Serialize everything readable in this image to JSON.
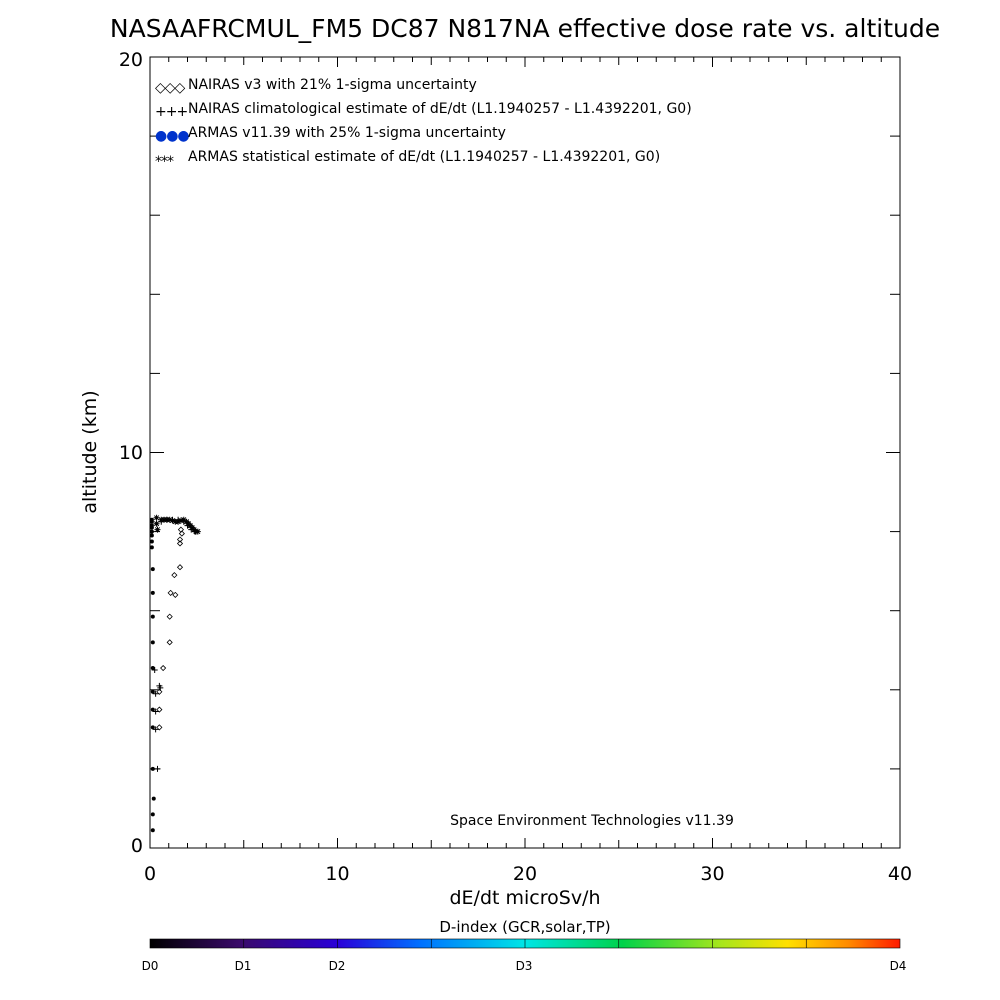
{
  "chart_data": {
    "type": "scatter",
    "title": "NASAAFRCMUL_FM5 DC87 N817NA effective dose rate vs. altitude",
    "xlabel": "dE/dt microSv/h",
    "ylabel": "altitude (km)",
    "xlim": [
      0,
      40
    ],
    "ylim": [
      0,
      20
    ],
    "x_ticks": [
      "0",
      "10",
      "20",
      "30",
      "40"
    ],
    "y_ticks": [
      "0",
      "10",
      "20"
    ],
    "grid": false,
    "legend_position": "top-left",
    "legend": [
      {
        "symbol": "◇◇◇",
        "label": "NAIRAS v3 with 21% 1-sigma uncertainty",
        "color": "#000000"
      },
      {
        "symbol": "+++",
        "label": "NAIRAS climatological estimate of dE/dt (L1.1940257 - L1.4392201, G0)",
        "color": "#000000"
      },
      {
        "symbol": "●●●",
        "label": "ARMAS v11.39 with 25% 1-sigma uncertainty",
        "color": "#0033cc"
      },
      {
        "symbol": "***",
        "label": "ARMAS statistical estimate of dE/dt (L1.1940257 - L1.4392201, G0)",
        "color": "#000000"
      }
    ],
    "credit": "Space Environment Technologies v11.39",
    "series": [
      {
        "marker": "diamond",
        "color": "#000000",
        "points": [
          [
            0.5,
            3.05
          ],
          [
            0.5,
            3.5
          ],
          [
            0.5,
            3.95
          ],
          [
            0.7,
            4.55
          ],
          [
            1.05,
            5.2
          ],
          [
            1.05,
            5.85
          ],
          [
            1.1,
            6.45
          ],
          [
            1.35,
            6.4
          ],
          [
            1.3,
            6.9
          ],
          [
            1.6,
            7.1
          ],
          [
            1.6,
            7.7
          ],
          [
            1.6,
            7.8
          ],
          [
            1.7,
            7.95
          ],
          [
            1.65,
            8.05
          ]
        ]
      },
      {
        "marker": "plus",
        "color": "#000000",
        "points": [
          [
            0.4,
            2.0
          ],
          [
            0.3,
            3.0
          ],
          [
            0.3,
            3.45
          ],
          [
            0.3,
            3.9
          ],
          [
            0.25,
            4.5
          ],
          [
            0.5,
            4.1
          ],
          [
            0.55,
            4.05
          ],
          [
            0.6,
            8.25
          ],
          [
            0.9,
            8.3
          ],
          [
            1.2,
            8.3
          ],
          [
            1.5,
            8.3
          ],
          [
            1.8,
            8.25
          ],
          [
            2.0,
            8.15
          ],
          [
            2.2,
            8.05
          ],
          [
            2.4,
            8.0
          ]
        ]
      },
      {
        "marker": "dot",
        "color": "#000000",
        "points": [
          [
            0.15,
            0.45
          ],
          [
            0.15,
            0.85
          ],
          [
            0.2,
            1.25
          ],
          [
            0.15,
            2.0
          ],
          [
            0.15,
            3.05
          ],
          [
            0.15,
            3.5
          ],
          [
            0.15,
            3.95
          ],
          [
            0.15,
            4.55
          ],
          [
            0.15,
            5.2
          ],
          [
            0.15,
            5.85
          ],
          [
            0.15,
            6.45
          ],
          [
            0.15,
            7.05
          ],
          [
            0.1,
            7.6
          ],
          [
            0.1,
            7.75
          ],
          [
            0.1,
            7.9
          ],
          [
            0.1,
            8.0
          ],
          [
            0.1,
            8.1
          ],
          [
            0.1,
            8.15
          ],
          [
            0.1,
            8.25
          ],
          [
            0.1,
            8.3
          ]
        ]
      },
      {
        "marker": "star",
        "color": "#000000",
        "points": [
          [
            0.6,
            8.3
          ],
          [
            0.75,
            8.3
          ],
          [
            0.9,
            8.3
          ],
          [
            1.05,
            8.3
          ],
          [
            1.2,
            8.28
          ],
          [
            1.35,
            8.25
          ],
          [
            1.5,
            8.25
          ],
          [
            1.65,
            8.28
          ],
          [
            1.8,
            8.3
          ],
          [
            1.95,
            8.25
          ],
          [
            2.05,
            8.2
          ],
          [
            2.15,
            8.15
          ],
          [
            2.25,
            8.1
          ],
          [
            2.35,
            8.05
          ],
          [
            2.45,
            8.0
          ],
          [
            2.55,
            8.0
          ],
          [
            0.35,
            8.35
          ],
          [
            0.35,
            8.2
          ],
          [
            0.4,
            8.05
          ]
        ]
      }
    ],
    "colorbar": {
      "title": "D-index (GCR,solar,TP)",
      "labels": [
        "D0",
        "D1",
        "D2",
        "D3",
        "D4"
      ]
    }
  }
}
